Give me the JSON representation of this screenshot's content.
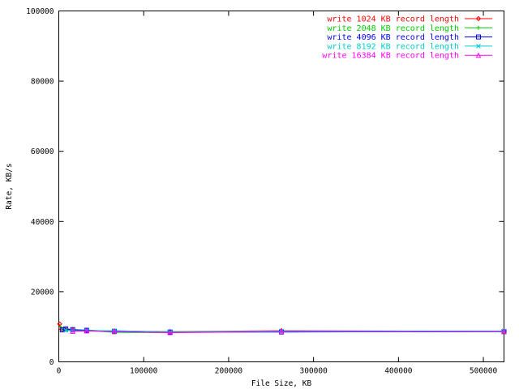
{
  "chart_data": {
    "type": "line",
    "title": "",
    "xlabel": "File Size, KB",
    "ylabel": "Rate, KB/s",
    "xlim": [
      0,
      524288
    ],
    "ylim": [
      0,
      100000
    ],
    "xticks": [
      0,
      100000,
      200000,
      300000,
      400000,
      500000
    ],
    "yticks": [
      0,
      20000,
      40000,
      60000,
      80000,
      100000
    ],
    "grid": false,
    "legend_position": "top-right",
    "series": [
      {
        "name": "write 1024 KB record length",
        "color": "#ff0000",
        "marker": "diamond",
        "x": [
          1024,
          2048,
          4096,
          8192,
          16384,
          32768,
          65536,
          131072,
          262144,
          524288
        ],
        "y": [
          10800,
          9600,
          9200,
          9300,
          9100,
          9000,
          8800,
          8600,
          8900,
          8700
        ]
      },
      {
        "name": "write 2048 KB record length",
        "color": "#00cc00",
        "marker": "plus",
        "x": [
          2048,
          4096,
          8192,
          16384,
          32768,
          65536,
          131072,
          262144,
          524288
        ],
        "y": [
          9900,
          9300,
          9100,
          8900,
          8900,
          8400,
          8300,
          8800,
          8700
        ]
      },
      {
        "name": "write 4096 KB record length",
        "color": "#0000ff",
        "marker": "square",
        "x": [
          4096,
          8192,
          16384,
          32768,
          65536,
          131072,
          262144,
          524288
        ],
        "y": [
          9100,
          9400,
          9200,
          9000,
          8700,
          8500,
          8500,
          8600
        ]
      },
      {
        "name": "write 8192 KB record length",
        "color": "#00cccc",
        "marker": "x",
        "x": [
          8192,
          16384,
          32768,
          65536,
          131072,
          262144,
          524288
        ],
        "y": [
          9000,
          8800,
          8900,
          8900,
          8500,
          8800,
          8800
        ]
      },
      {
        "name": "write 16384 KB record length",
        "color": "#ff00ff",
        "marker": "triangle",
        "x": [
          16384,
          32768,
          65536,
          131072,
          262144,
          524288
        ],
        "y": [
          8700,
          8800,
          8600,
          8300,
          8600,
          8600
        ]
      }
    ]
  }
}
